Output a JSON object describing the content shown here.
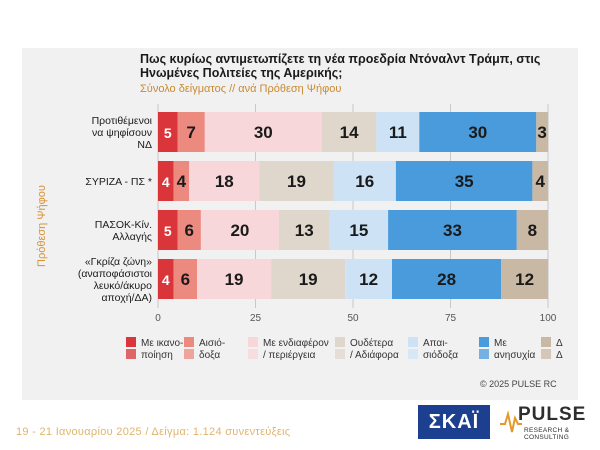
{
  "title": "Πως κυρίως αντιμετωπίζετε τη νέα προεδρία Ντόναλντ Τράμπ, στις Ηνωμένες Πολιτείες της Αμερικής;",
  "subtitle": "Σύνολο δείγματος // ανά Πρόθεση Ψήφου",
  "watermark": "PULSE",
  "copyright": "© 2025 PULSE RC",
  "footer": "19 - 21 Ιανουαρίου 2025  /  Δείγμα:  1.124 συνεντεύξεις",
  "logos": {
    "skai": "ΣΚΑΪ",
    "pulse": "PULSE",
    "pulse_sub": "RESEARCH & CONSULTING"
  },
  "colors": {
    "satisfaction": "#d9353a",
    "hope": "#ec8a80",
    "interest": "#f7d7d9",
    "neutral": "#e0d7cc",
    "disappointment": "#cde3f5",
    "concern": "#4a9bdc",
    "dk": "#c9b8a4",
    "accent": "#d8913a",
    "skai_blue": "#1c3f8f"
  },
  "chart_data": {
    "type": "bar",
    "orientation": "horizontal",
    "stacked": true,
    "title": "Πως κυρίως αντιμετωπίζετε τη νέα προεδρία Ντόναλντ Τράμπ, στις Ηνωμένες Πολιτείες της Αμερικής;",
    "subtitle": "Σύνολο δείγματος // ανά Πρόθεση Ψήφου",
    "ylabel": "Πρόθεση Ψήφου",
    "xlabel": "",
    "xlim": [
      0,
      100
    ],
    "xticks": [
      0,
      25,
      50,
      75,
      100
    ],
    "grid": true,
    "legend_position": "bottom",
    "categories": [
      "Προτιθέμενοι να ψηφίσουν ΝΔ",
      "ΣΥΡΙΖΑ - ΠΣ *",
      "ΠΑΣΟΚ-Κιν. Αλλαγής",
      "«Γκρίζα ζώνη» (αναποφάσιστοι λευκό/άκυρο αποχή/ΔΑ)"
    ],
    "category_lines": [
      [
        "Προτιθέμενοι",
        "να ψηφίσουν",
        "ΝΔ"
      ],
      [
        "ΣΥΡΙΖΑ - ΠΣ *"
      ],
      [
        "ΠΑΣΟΚ-Κίν.",
        "Αλλαγής"
      ],
      [
        "«Γκρίζα ζώνη»",
        "(αναποφάσιστοι",
        "λευκό/άκυρο",
        "αποχή/ΔΑ)"
      ]
    ],
    "series": [
      {
        "name": "Με ικανοποίηση",
        "legend_lines": [
          "Με ικανο-",
          "ποίηση"
        ],
        "color_key": "satisfaction",
        "values": [
          5,
          4,
          5,
          4
        ]
      },
      {
        "name": "Αισιόδοξα",
        "legend_lines": [
          "Αισιό-",
          "δοξα"
        ],
        "color_key": "hope",
        "values": [
          7,
          4,
          6,
          6
        ]
      },
      {
        "name": "Με ενδιαφέρον / περιέργεια",
        "legend_lines": [
          "Με ενδιαφέρον",
          "/ περιέργεια"
        ],
        "color_key": "interest",
        "values": [
          30,
          18,
          20,
          19
        ]
      },
      {
        "name": "Ουδέτερα / Αδιάφορα",
        "legend_lines": [
          "Ουδέτερα",
          "/ Αδιάφορα"
        ],
        "color_key": "neutral",
        "values": [
          14,
          19,
          13,
          19
        ]
      },
      {
        "name": "Απαισιόδοξα",
        "legend_lines": [
          "Απαι-",
          "σιόδοξα"
        ],
        "color_key": "disappointment",
        "values": [
          11,
          16,
          15,
          12
        ]
      },
      {
        "name": "Με ανησυχία",
        "legend_lines": [
          "Με",
          "ανησυχία"
        ],
        "color_key": "concern",
        "values": [
          30,
          35,
          33,
          28
        ]
      },
      {
        "name": "Δ Δ",
        "legend_lines": [
          "Δ",
          "Δ"
        ],
        "color_key": "dk",
        "values": [
          3,
          4,
          8,
          12
        ]
      }
    ]
  }
}
